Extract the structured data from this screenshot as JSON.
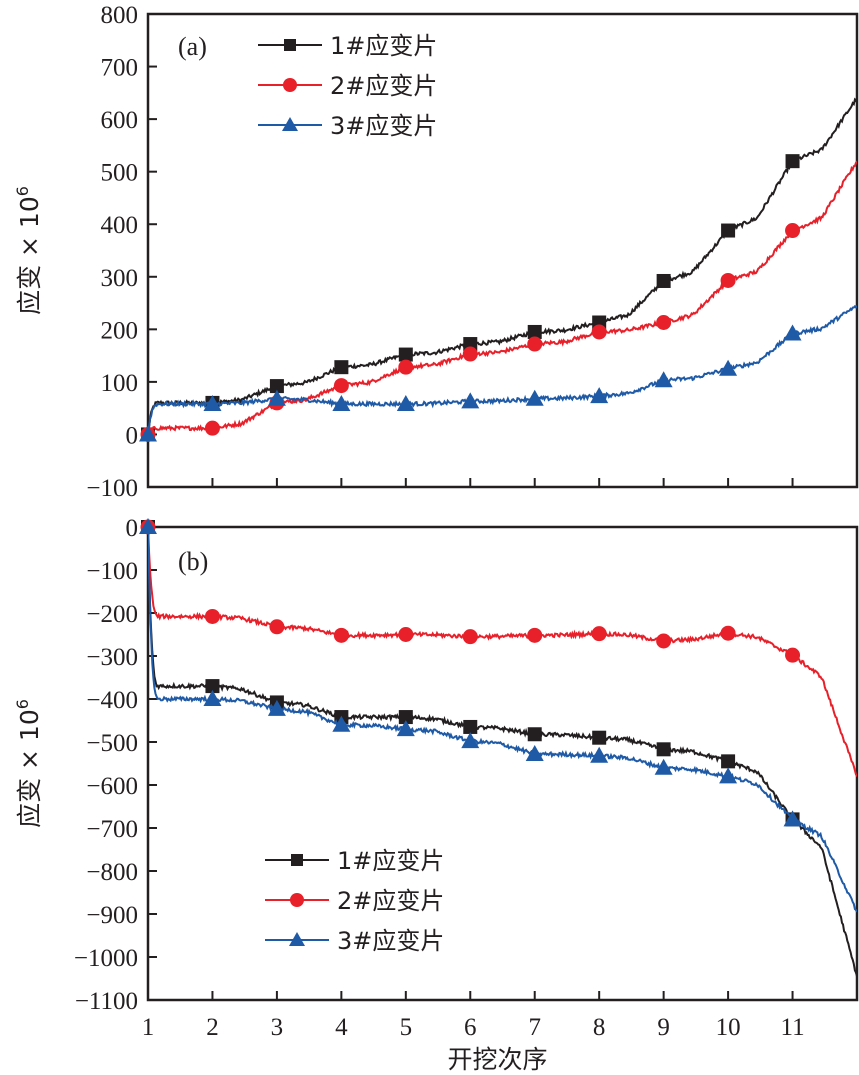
{
  "chart_data": [
    {
      "type": "line",
      "panel_label": "(a)",
      "xlabel": "",
      "ylabel": "应变 × 10⁶",
      "ylabel_main": "应变 ×",
      "ylabel_exp": "10",
      "ylabel_sup": "6",
      "xlim": [
        1,
        12
      ],
      "ylim": [
        -100,
        800
      ],
      "yticks": [
        -100,
        0,
        100,
        200,
        300,
        400,
        500,
        600,
        700,
        800
      ],
      "ytick_labels": [
        "−100",
        "0",
        "100",
        "200",
        "300",
        "400",
        "500",
        "600",
        "700",
        "800"
      ],
      "xticks": [
        1,
        2,
        3,
        4,
        5,
        6,
        7,
        8,
        9,
        10,
        11
      ],
      "show_xtick_labels": false,
      "grid": false,
      "legend_position": "top-center",
      "x": [
        1,
        2,
        3,
        4,
        5,
        6,
        7,
        8,
        9,
        10,
        11,
        12
      ],
      "series": [
        {
          "name": "1#应变片",
          "color": "#231f20",
          "marker": "square",
          "values": [
            0,
            60,
            92,
            128,
            152,
            172,
            195,
            213,
            292,
            388,
            520,
            640
          ]
        },
        {
          "name": "2#应变片",
          "color": "#e8202a",
          "marker": "circle",
          "values": [
            0,
            12,
            60,
            93,
            128,
            153,
            172,
            195,
            213,
            293,
            388,
            520
          ]
        },
        {
          "name": "3#应变片",
          "color": "#1f5aa6",
          "marker": "triangle",
          "values": [
            0,
            58,
            68,
            58,
            58,
            63,
            68,
            73,
            103,
            125,
            192,
            245
          ]
        }
      ]
    },
    {
      "type": "line",
      "panel_label": "(b)",
      "xlabel": "开挖次序",
      "ylabel": "应变 × 10⁶",
      "ylabel_main": "应变 ×",
      "ylabel_exp": "10",
      "ylabel_sup": "6",
      "xlim": [
        1,
        12
      ],
      "ylim": [
        -1100,
        0
      ],
      "yticks": [
        -1100,
        -1000,
        -900,
        -800,
        -700,
        -600,
        -500,
        -400,
        -300,
        -200,
        -100,
        0
      ],
      "ytick_labels": [
        "−1100",
        "−1000",
        "−900",
        "−800",
        "−700",
        "−600",
        "−500",
        "−400",
        "−300",
        "−200",
        "−100",
        "0"
      ],
      "xticks": [
        1,
        2,
        3,
        4,
        5,
        6,
        7,
        8,
        9,
        10,
        11
      ],
      "xtick_labels": [
        "1",
        "2",
        "3",
        "4",
        "5",
        "6",
        "7",
        "8",
        "9",
        "10",
        "11"
      ],
      "show_xtick_labels": true,
      "grid": false,
      "legend_position": "bottom-left",
      "x": [
        1,
        2,
        3,
        4,
        5,
        6,
        7,
        8,
        9,
        10,
        11,
        12
      ],
      "series": [
        {
          "name": "1#应变片",
          "color": "#231f20",
          "marker": "square",
          "values": [
            0,
            -370,
            -408,
            -442,
            -442,
            -465,
            -482,
            -490,
            -517,
            -545,
            -680,
            -1045
          ]
        },
        {
          "name": "2#应变片",
          "color": "#e8202a",
          "marker": "circle",
          "values": [
            0,
            -208,
            -232,
            -252,
            -250,
            -255,
            -252,
            -248,
            -265,
            -247,
            -298,
            -580
          ]
        },
        {
          "name": "3#应变片",
          "color": "#1f5aa6",
          "marker": "triangle",
          "values": [
            0,
            -400,
            -423,
            -460,
            -470,
            -498,
            -528,
            -532,
            -560,
            -580,
            -680,
            -895
          ]
        }
      ]
    }
  ]
}
